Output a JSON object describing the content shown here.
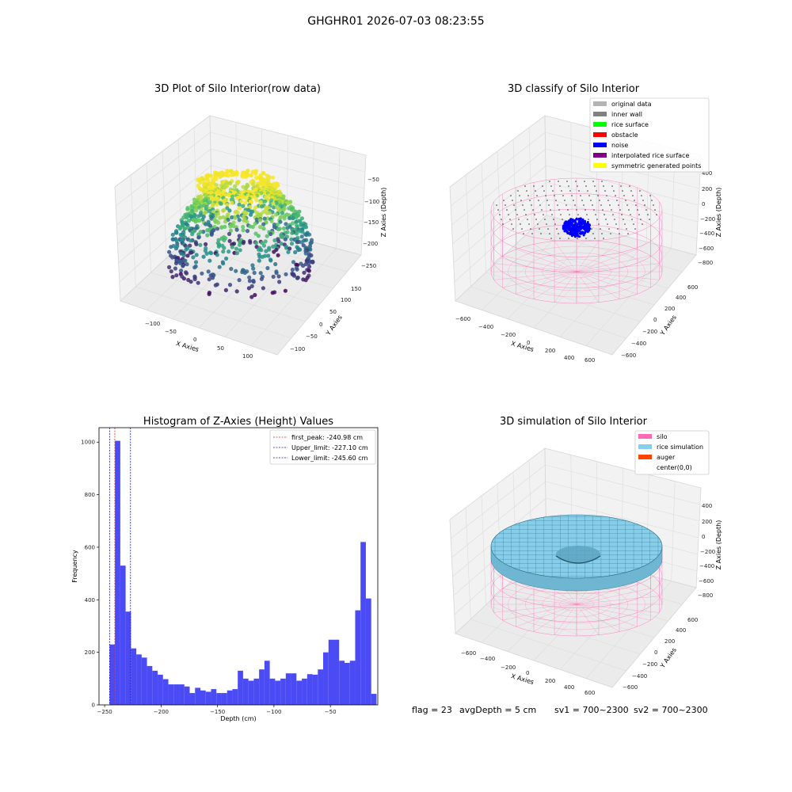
{
  "figure_title": "GHGHR01 2026-07-03 08:23:55",
  "status": {
    "flag": "flag = 23",
    "avgDepth": "avgDepth = 5 cm",
    "sv1": "sv1 = 700~2300",
    "sv2": "sv2 = 700~2300"
  },
  "colors": {
    "hist": "#4b4bf5",
    "first_peak": "#d62728",
    "limits": "#1f1fb0",
    "silo": "#ff69b4",
    "rice": "#87ceeb",
    "auger": "#ff4500",
    "noise": "#0000ff",
    "viridis_low": "#440154",
    "viridis_mid": "#21918c",
    "viridis_high": "#fde725"
  },
  "chart_data": [
    {
      "type": "scatter",
      "title": "3D Plot of Silo Interior(row data)",
      "xlabel": "X Axies",
      "ylabel": "Y Axies",
      "zlabel": "Z Axies (Depth)",
      "xticks": [
        "−100",
        "−50",
        "0",
        "50",
        "100"
      ],
      "yticks": [
        "−100",
        "−50",
        "0",
        "50",
        "100",
        "150"
      ],
      "zticks": [
        "−50",
        "−100",
        "−150",
        "−200",
        "−250"
      ],
      "colormap": "viridis by depth"
    },
    {
      "type": "scatter",
      "title": "3D classify of Silo Interior",
      "xlabel": "X Axies",
      "ylabel": "Y Axies",
      "zlabel": "Z Axies (Depth)",
      "xticks": [
        "−600",
        "−400",
        "−200",
        "0",
        "200",
        "400",
        "600"
      ],
      "yticks": [
        "−600",
        "−400",
        "−200",
        "0",
        "200",
        "400",
        "600"
      ],
      "zticks": [
        "400",
        "200",
        "0",
        "−200",
        "−400",
        "−600",
        "−800"
      ],
      "legend": {
        "position": "top-right",
        "items": [
          {
            "label": "original data",
            "color": "#b4b4b4"
          },
          {
            "label": "inner wall",
            "color": "#808080"
          },
          {
            "label": "rice surface",
            "color": "#00ff00"
          },
          {
            "label": "obstacle",
            "color": "#ff0000"
          },
          {
            "label": "noise",
            "color": "#0000ff"
          },
          {
            "label": "interpolated rice surface",
            "color": "#800080"
          },
          {
            "label": "symmetric generated points",
            "color": "#ffff00"
          }
        ]
      }
    },
    {
      "type": "bar",
      "title": "Histogram of Z-Axies (Height) Values",
      "xlabel": "Depth (cm)",
      "ylabel": "Frequency",
      "xlim": [
        -255,
        -8
      ],
      "ylim": [
        0,
        1055
      ],
      "xticks": [
        -250,
        -200,
        -150,
        -100,
        -50
      ],
      "xtick_labels": [
        "−250",
        "−200",
        "−150",
        "−100",
        "−50"
      ],
      "yticks": [
        0,
        200,
        400,
        600,
        800,
        1000
      ],
      "bin_start": -245.6,
      "bin_width": 4.73,
      "values": [
        230,
        1005,
        530,
        355,
        215,
        192,
        180,
        148,
        130,
        115,
        98,
        78,
        78,
        78,
        70,
        45,
        65,
        55,
        50,
        60,
        45,
        45,
        55,
        60,
        130,
        100,
        92,
        100,
        135,
        168,
        100,
        92,
        100,
        120,
        120,
        92,
        100,
        117,
        115,
        135,
        200,
        248,
        248,
        168,
        160,
        168,
        360,
        620,
        405,
        42
      ],
      "vlines": [
        {
          "label": "first_peak: -240.98 cm",
          "value": -240.98,
          "color": "#d62728"
        },
        {
          "label": "Upper_limit: -227.10 cm",
          "value": -227.1,
          "color": "#1f1fb0"
        },
        {
          "label": "Lower_limit: -245.60 cm",
          "value": -245.6,
          "color": "#1f1fb0"
        }
      ],
      "legend": "top-right"
    },
    {
      "type": "area",
      "title": "3D simulation of Silo Interior",
      "xlabel": "X Axies",
      "ylabel": "Y Axies",
      "zlabel": "Z Axies (Depth)",
      "xticks": [
        "−600",
        "−400",
        "−200",
        "0",
        "200",
        "400",
        "600"
      ],
      "yticks": [
        "−600",
        "−400",
        "−200",
        "0",
        "200",
        "400",
        "600"
      ],
      "zticks": [
        "400",
        "200",
        "0",
        "−200",
        "−400",
        "−600",
        "−800"
      ],
      "legend": {
        "position": "top-right",
        "items": [
          {
            "label": "silo",
            "color": "#ff69b4"
          },
          {
            "label": "rice simulation",
            "color": "#87ceeb"
          },
          {
            "label": "auger",
            "color": "#ff4500"
          },
          {
            "label": "center(0,0)",
            "color": "#ffffff"
          }
        ]
      }
    }
  ]
}
